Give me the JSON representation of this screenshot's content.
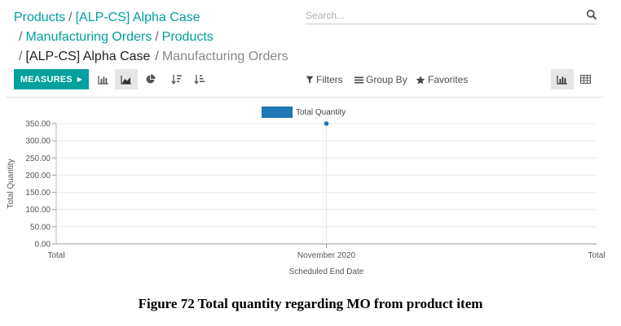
{
  "breadcrumb": {
    "items": [
      "Products",
      "[ALP-CS] Alpha Case",
      "Manufacturing Orders",
      "Products",
      "[ALP-CS] Alpha Case",
      "Manufacturing Orders"
    ],
    "separator": "/"
  },
  "search": {
    "placeholder": "Search..."
  },
  "toolbar": {
    "measures_label": "MEASURES",
    "filters_label": "Filters",
    "group_by_label": "Group By",
    "favorites_label": "Favorites"
  },
  "chart_data": {
    "type": "line",
    "title": "",
    "xlabel": "Scheduled End Date",
    "ylabel": "Total Quantity",
    "categories": [
      "November 2020"
    ],
    "x_edge_labels": [
      "Total",
      "Total"
    ],
    "series": [
      {
        "name": "Total Quantity",
        "values": [
          350
        ],
        "color": "#1f77b4"
      }
    ],
    "y_ticks": [
      "0.00",
      "50.00",
      "100.00",
      "150.00",
      "200.00",
      "250.00",
      "300.00",
      "350.00"
    ],
    "ylim": [
      0,
      350
    ],
    "grid": true,
    "legend_position": "top-center"
  },
  "caption": "Figure 72 Total quantity regarding MO from product item",
  "colors": {
    "accent": "#00a09d",
    "series": "#1f77b4"
  },
  "icons": [
    "search-icon",
    "bar-chart-icon",
    "area-chart-icon",
    "pie-chart-icon",
    "sort-descending-icon",
    "sort-ascending-icon",
    "filter-icon",
    "group-by-icon",
    "star-icon",
    "graph-view-icon",
    "pivot-view-icon"
  ]
}
